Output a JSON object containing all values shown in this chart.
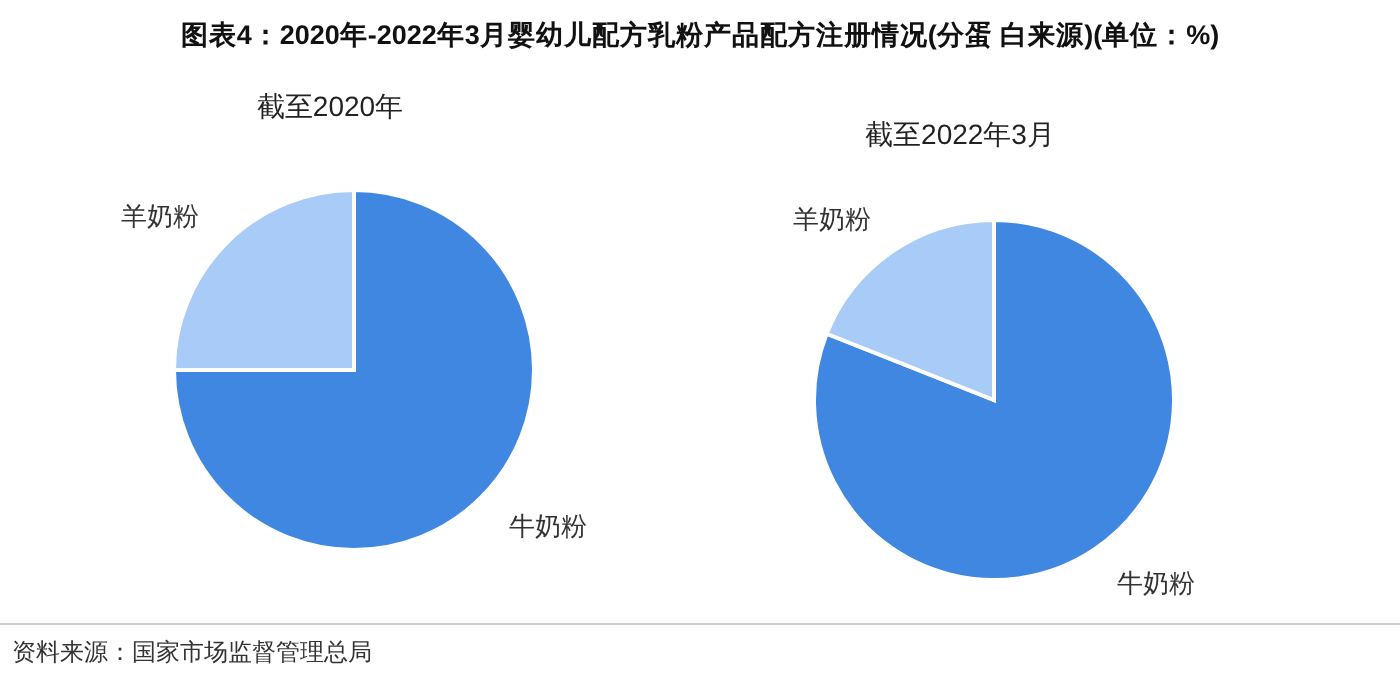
{
  "chart_data": [
    {
      "type": "pie",
      "title": "图表4：2020年-2022年3月婴幼儿配方乳粉产品配方注册情况(分蛋 白来源)(单位：%)",
      "subtitle": "截至2020年",
      "categories": [
        "牛奶粉",
        "羊奶粉"
      ],
      "values": [
        75,
        25
      ],
      "colors": [
        "#3f87e0",
        "#a9cbf7"
      ]
    },
    {
      "type": "pie",
      "subtitle": "截至2022年3月",
      "categories": [
        "牛奶粉",
        "羊奶粉"
      ],
      "values": [
        81,
        19
      ],
      "colors": [
        "#3f87e0",
        "#a9cbf7"
      ],
      "annotations": [
        "资料来源：国家市场监督管理总局"
      ]
    }
  ]
}
